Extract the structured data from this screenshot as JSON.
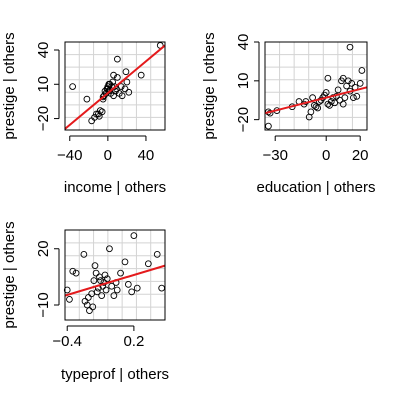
{
  "chart_data": [
    {
      "type": "scatter",
      "xlabel": "income | others",
      "ylabel": "prestige  | others",
      "xlim": [
        -45,
        60
      ],
      "ylim": [
        -30,
        47
      ],
      "xticks": [
        -40,
        0,
        40
      ],
      "yticks": [
        -20,
        10,
        40
      ],
      "grid": true,
      "fit_line": {
        "color": "#e41a1c",
        "x0": -45,
        "y0": -29,
        "x1": 60,
        "y1": 44
      },
      "points": [
        [
          -37,
          8
        ],
        [
          -22,
          -3
        ],
        [
          -17,
          -22
        ],
        [
          -14,
          -19
        ],
        [
          -12,
          -16
        ],
        [
          -10,
          -16
        ],
        [
          -9,
          -18
        ],
        [
          -8,
          -13
        ],
        [
          -6,
          -14
        ],
        [
          -5,
          -3
        ],
        [
          -4,
          0
        ],
        [
          -3,
          4
        ],
        [
          -2,
          2
        ],
        [
          -1,
          6
        ],
        [
          0,
          6
        ],
        [
          0,
          8
        ],
        [
          1,
          4
        ],
        [
          1,
          10
        ],
        [
          2,
          5
        ],
        [
          3,
          2
        ],
        [
          4,
          8
        ],
        [
          5,
          12
        ],
        [
          6,
          18
        ],
        [
          7,
          8
        ],
        [
          8,
          4
        ],
        [
          9,
          6
        ],
        [
          10,
          16
        ],
        [
          12,
          2
        ],
        [
          14,
          8
        ],
        [
          15,
          0
        ],
        [
          18,
          6
        ],
        [
          19,
          21
        ],
        [
          20,
          12
        ],
        [
          22,
          3
        ],
        [
          10,
          32
        ],
        [
          35,
          18
        ],
        [
          55,
          44
        ],
        [
          -5,
          -1
        ],
        [
          2,
          10
        ],
        [
          6,
          0
        ]
      ]
    },
    {
      "type": "scatter",
      "xlabel": "education | others",
      "ylabel": "prestige  | others",
      "xlim": [
        -36,
        24
      ],
      "ylim": [
        -28,
        40
      ],
      "xticks": [
        -30,
        0,
        20
      ],
      "yticks": [
        -20,
        10,
        40
      ],
      "grid": true,
      "fit_line": {
        "color": "#e41a1c",
        "x0": -36,
        "y0": -15,
        "x1": 24,
        "y1": 5
      },
      "points": [
        [
          -34,
          -14
        ],
        [
          -34,
          -25
        ],
        [
          -33,
          -15
        ],
        [
          -29,
          -13
        ],
        [
          -20,
          -10
        ],
        [
          -16,
          -6
        ],
        [
          -13,
          -8
        ],
        [
          -12,
          -6
        ],
        [
          -10,
          -18
        ],
        [
          -9,
          -14
        ],
        [
          -8,
          -3
        ],
        [
          -7,
          -9
        ],
        [
          -6,
          -10
        ],
        [
          -5,
          -11
        ],
        [
          -4,
          -6
        ],
        [
          -3,
          -5
        ],
        [
          -2,
          -3
        ],
        [
          -1,
          -1
        ],
        [
          0,
          1
        ],
        [
          1,
          -8
        ],
        [
          2,
          -9
        ],
        [
          3,
          -6
        ],
        [
          4,
          -3
        ],
        [
          5,
          -7
        ],
        [
          6,
          -2
        ],
        [
          7,
          3
        ],
        [
          8,
          -5
        ],
        [
          9,
          10
        ],
        [
          10,
          -8
        ],
        [
          10,
          12
        ],
        [
          11,
          -3
        ],
        [
          12,
          6
        ],
        [
          13,
          10
        ],
        [
          14,
          2
        ],
        [
          15,
          8
        ],
        [
          16,
          -3
        ],
        [
          17,
          5
        ],
        [
          18,
          -2
        ],
        [
          14,
          36
        ],
        [
          21,
          18
        ],
        [
          1,
          12
        ],
        [
          20,
          8
        ]
      ]
    },
    {
      "type": "scatter",
      "xlabel": "typeprof | others",
      "ylabel": "prestige  | others",
      "xlim": [
        -0.42,
        0.48
      ],
      "ylim": [
        -18,
        30
      ],
      "xticks": [
        -0.4,
        0.2
      ],
      "yticks": [
        -10,
        20
      ],
      "grid": true,
      "fit_line": {
        "color": "#e41a1c",
        "x0": -0.42,
        "y0": -5,
        "x1": 0.48,
        "y1": 11
      },
      "points": [
        [
          -0.4,
          -2
        ],
        [
          -0.38,
          -7
        ],
        [
          -0.35,
          8
        ],
        [
          -0.32,
          7
        ],
        [
          -0.25,
          17
        ],
        [
          -0.24,
          -8
        ],
        [
          -0.22,
          -10
        ],
        [
          -0.21,
          -6
        ],
        [
          -0.2,
          -13
        ],
        [
          -0.18,
          -4
        ],
        [
          -0.17,
          -11
        ],
        [
          -0.15,
          11
        ],
        [
          -0.14,
          7
        ],
        [
          -0.13,
          -3
        ],
        [
          -0.12,
          -1
        ],
        [
          -0.11,
          5
        ],
        [
          -0.1,
          3
        ],
        [
          -0.09,
          -5
        ],
        [
          -0.08,
          0
        ],
        [
          -0.07,
          2
        ],
        [
          -0.06,
          6
        ],
        [
          -0.05,
          -2
        ],
        [
          -0.04,
          4
        ],
        [
          -0.02,
          20
        ],
        [
          0.0,
          0
        ],
        [
          0.02,
          -5
        ],
        [
          0.05,
          -2
        ],
        [
          0.08,
          7
        ],
        [
          0.12,
          13
        ],
        [
          0.15,
          1
        ],
        [
          0.18,
          -3
        ],
        [
          0.2,
          27
        ],
        [
          0.23,
          -1
        ],
        [
          0.33,
          12
        ],
        [
          0.41,
          17
        ],
        [
          0.45,
          -1
        ],
        [
          0.04,
          2
        ],
        [
          -0.16,
          3
        ]
      ]
    }
  ]
}
